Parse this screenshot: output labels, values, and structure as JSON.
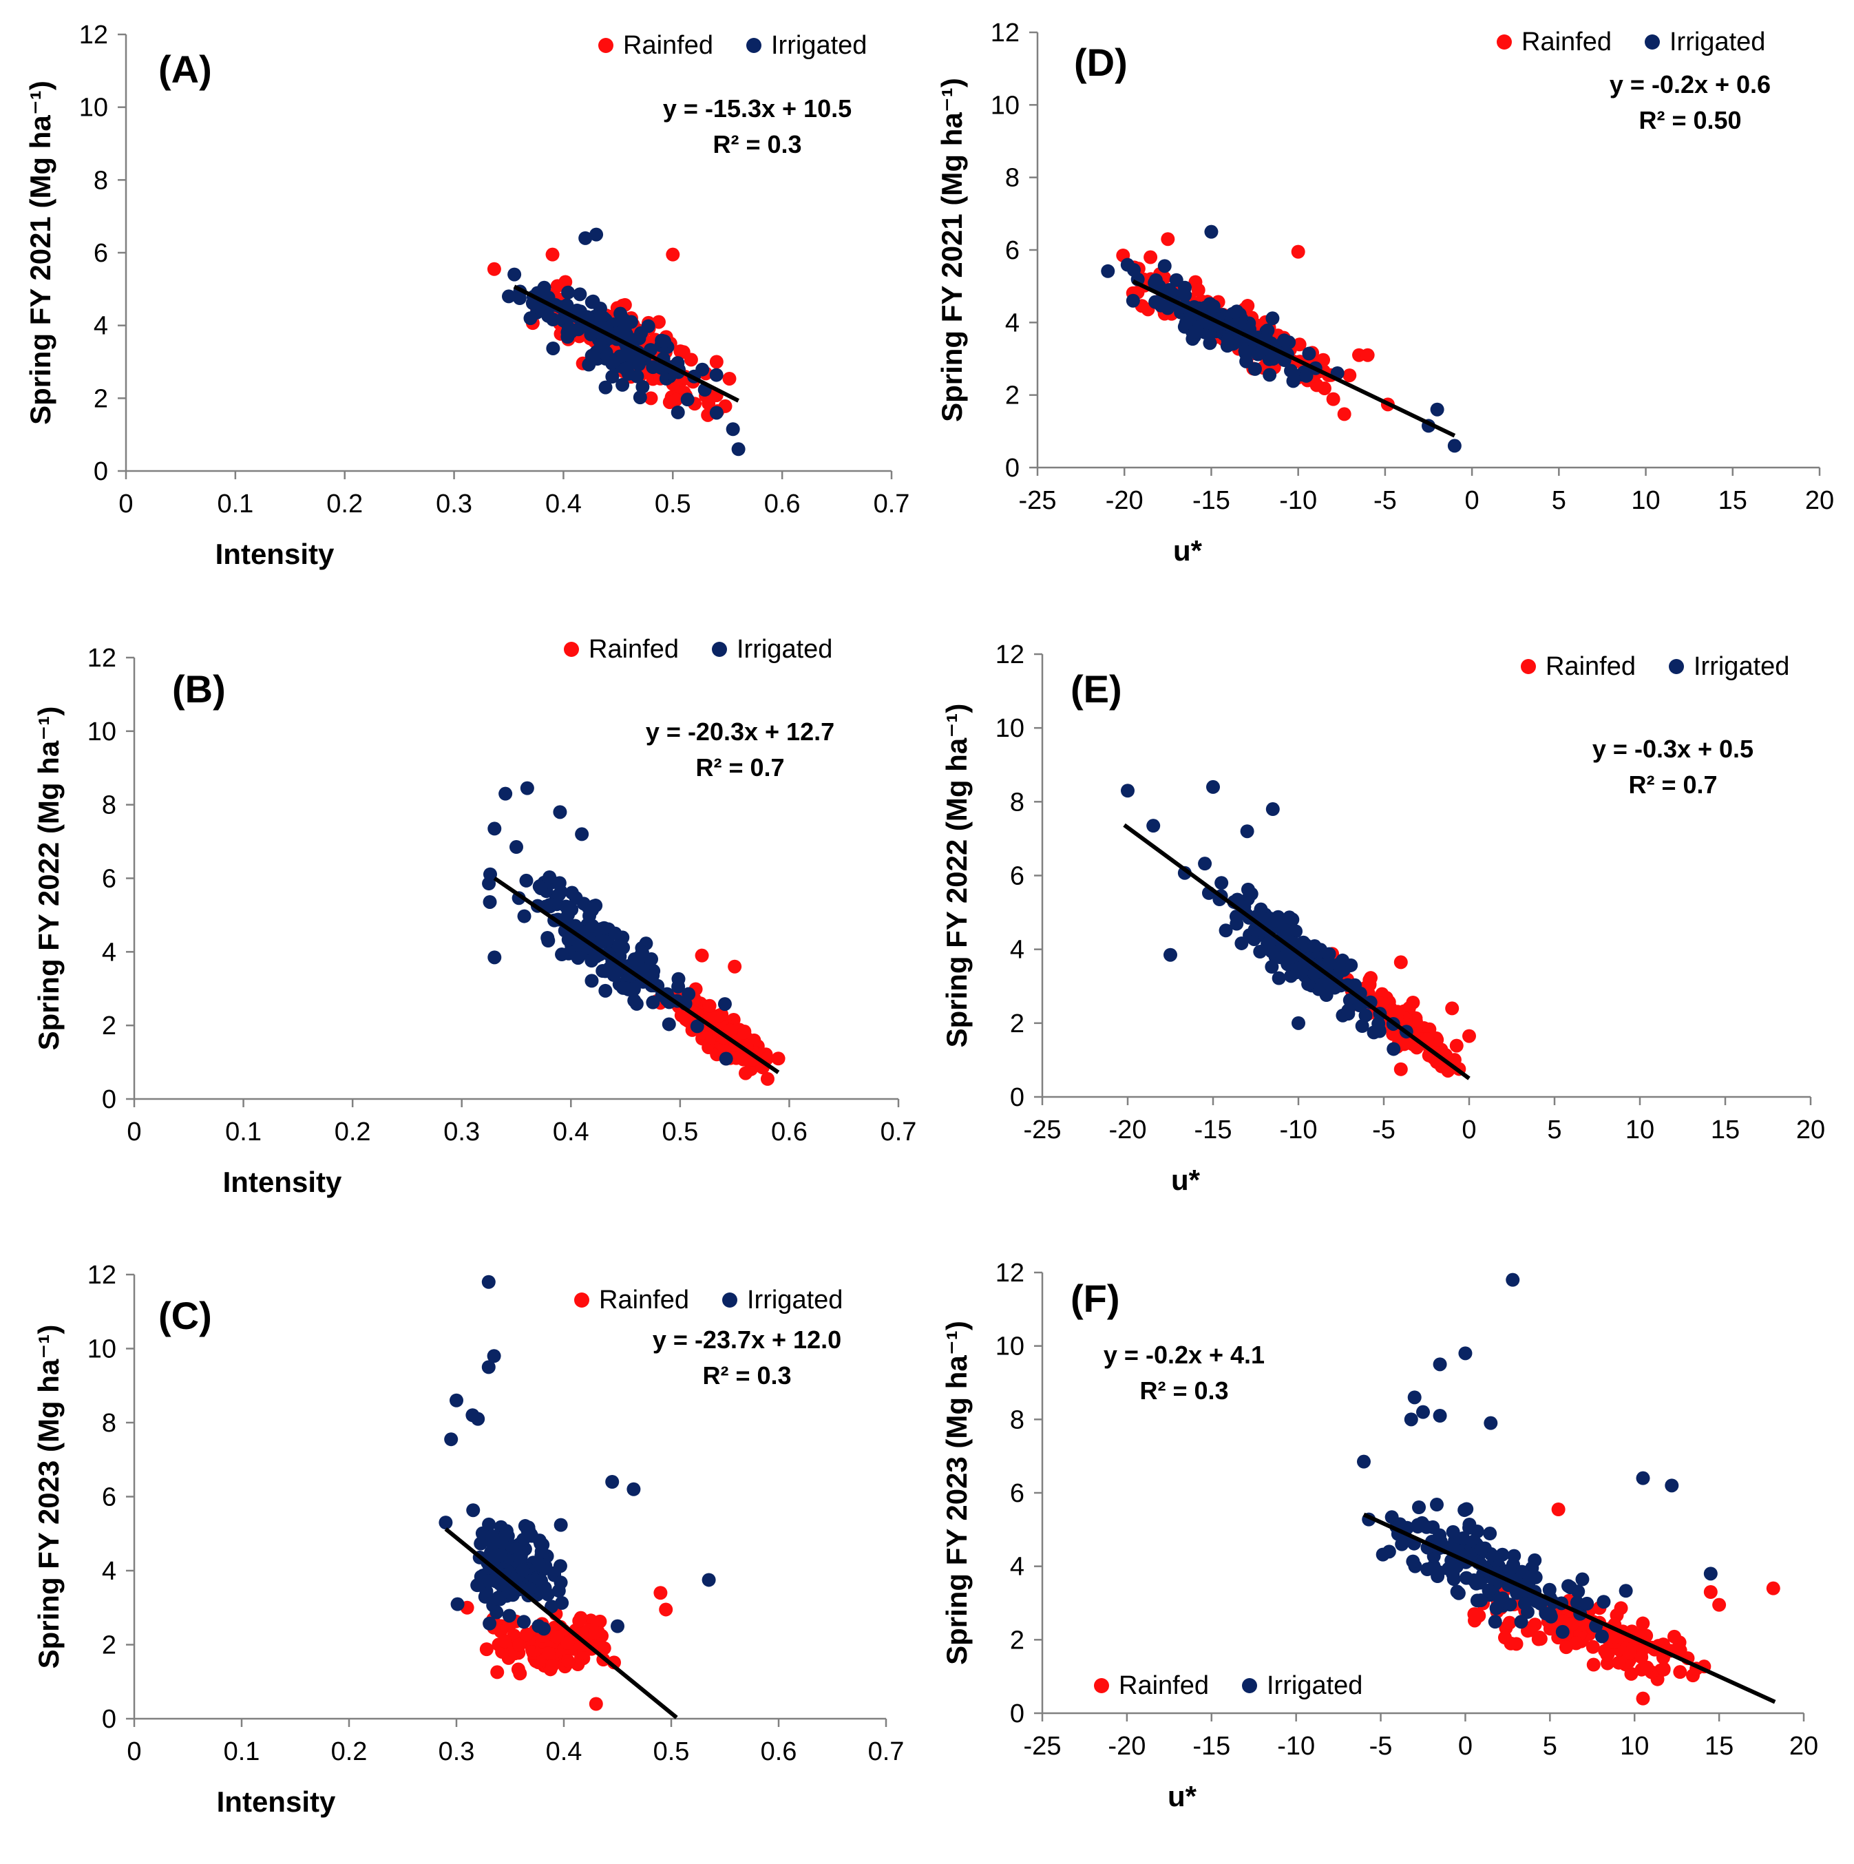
{
  "colors": {
    "rainfed": "#ff0d0d",
    "irrigated": "#0a2463",
    "trend": "#000000",
    "axis": "#808080"
  },
  "legend_labels": {
    "rainfed": "Rainfed",
    "irrigated": "Irrigated"
  },
  "chart_data": [
    {
      "id": "A",
      "type": "scatter",
      "panel_label": "(A)",
      "xlabel": "Intensity",
      "ylabel": "Spring FY 2021 (Mg ha⁻¹)",
      "xlim": [
        0,
        0.7
      ],
      "ylim": [
        0,
        12
      ],
      "xticks": [
        "0",
        "0.1",
        "0.2",
        "0.3",
        "0.4",
        "0.5",
        "0.6",
        "0.7"
      ],
      "yticks": [
        "0",
        "2",
        "4",
        "6",
        "8",
        "10",
        "12"
      ],
      "equation": "y = -15.3x + 10.5",
      "r2": "R² = 0.3",
      "trend": {
        "slope": -15.3,
        "intercept": 10.5,
        "x_range": [
          0.355,
          0.56
        ]
      },
      "series": [
        {
          "name": "Rainfed",
          "color_key": "rainfed",
          "center": [
            0.46,
            3.4
          ],
          "spread": [
            0.04,
            0.8
          ],
          "slope": -15.3,
          "n": 120,
          "seed": 11,
          "extra": [
            [
              0.5,
              5.95
            ],
            [
              0.54,
              3.0
            ],
            [
              0.39,
              5.95
            ],
            [
              0.48,
              2.0
            ],
            [
              0.52,
              1.85
            ]
          ]
        },
        {
          "name": "Irrigated",
          "color_key": "irrigated",
          "center": [
            0.44,
            3.7
          ],
          "spread": [
            0.035,
            0.85
          ],
          "slope": -15.3,
          "n": 140,
          "seed": 21,
          "extra": [
            [
              0.42,
              6.4
            ],
            [
              0.43,
              6.5
            ],
            [
              0.555,
              1.15
            ],
            [
              0.56,
              0.6
            ],
            [
              0.54,
              1.6
            ],
            [
              0.36,
              4.75
            ],
            [
              0.35,
              4.8
            ]
          ]
        }
      ]
    },
    {
      "id": "B",
      "type": "scatter",
      "panel_label": "(B)",
      "xlabel": "Intensity",
      "ylabel": "Spring FY 2022 (Mg ha⁻¹)",
      "xlim": [
        0,
        0.7
      ],
      "ylim": [
        0,
        12
      ],
      "xticks": [
        "0",
        "0.1",
        "0.2",
        "0.3",
        "0.4",
        "0.5",
        "0.6",
        "0.7"
      ],
      "yticks": [
        "0",
        "2",
        "4",
        "6",
        "8",
        "10",
        "12"
      ],
      "equation": "y = -20.3x + 12.7",
      "r2": "R² = 0.7",
      "trend": {
        "slope": -20.3,
        "intercept": 12.7,
        "x_range": [
          0.33,
          0.59
        ]
      },
      "series": [
        {
          "name": "Rainfed",
          "color_key": "rainfed",
          "center": [
            0.535,
            1.9
          ],
          "spread": [
            0.02,
            0.45
          ],
          "slope": -20.3,
          "n": 150,
          "seed": 31,
          "extra": [
            [
              0.55,
              3.6
            ],
            [
              0.52,
              3.9
            ],
            [
              0.56,
              0.7
            ],
            [
              0.59,
              1.1
            ]
          ]
        },
        {
          "name": "Irrigated",
          "color_key": "irrigated",
          "center": [
            0.43,
            4.1
          ],
          "spread": [
            0.04,
            0.8
          ],
          "slope": -20.3,
          "n": 150,
          "seed": 41,
          "extra": [
            [
              0.34,
              8.3
            ],
            [
              0.36,
              8.45
            ],
            [
              0.33,
              7.35
            ],
            [
              0.33,
              3.85
            ],
            [
              0.39,
              7.8
            ],
            [
              0.41,
              7.2
            ]
          ]
        }
      ]
    },
    {
      "id": "C",
      "type": "scatter",
      "panel_label": "(C)",
      "xlabel": "Intensity",
      "ylabel": "Spring FY 2023 (Mg ha⁻¹)",
      "xlim": [
        0,
        0.7
      ],
      "ylim": [
        0,
        12
      ],
      "xticks": [
        "0",
        "0.1",
        "0.2",
        "0.3",
        "0.4",
        "0.5",
        "0.6",
        "0.7"
      ],
      "yticks": [
        "0",
        "2",
        "4",
        "6",
        "8",
        "10",
        "12"
      ],
      "equation": "y = -23.7x + 12.0",
      "r2": "R² = 0.3",
      "trend": {
        "slope": -23.7,
        "intercept": 12.0,
        "x_range": [
          0.29,
          0.505
        ]
      },
      "series": [
        {
          "name": "Rainfed",
          "color_key": "rainfed",
          "center": [
            0.385,
            2.0
          ],
          "spread": [
            0.025,
            0.55
          ],
          "slope": 0,
          "n": 130,
          "seed": 51,
          "extra": [
            [
              0.49,
              3.4
            ],
            [
              0.495,
              2.95
            ],
            [
              0.43,
              0.4
            ],
            [
              0.31,
              3.0
            ]
          ]
        },
        {
          "name": "Irrigated",
          "color_key": "irrigated",
          "center": [
            0.355,
            4.0
          ],
          "spread": [
            0.02,
            1.1
          ],
          "slope": 0,
          "n": 150,
          "seed": 61,
          "extra": [
            [
              0.33,
              11.8
            ],
            [
              0.335,
              9.8
            ],
            [
              0.33,
              9.5
            ],
            [
              0.3,
              8.6
            ],
            [
              0.315,
              8.2
            ],
            [
              0.32,
              8.1
            ],
            [
              0.295,
              7.55
            ],
            [
              0.445,
              6.4
            ],
            [
              0.465,
              6.2
            ],
            [
              0.535,
              3.75
            ],
            [
              0.29,
              5.3
            ],
            [
              0.45,
              2.5
            ]
          ]
        }
      ]
    },
    {
      "id": "D",
      "type": "scatter",
      "panel_label": "(D)",
      "xlabel": "u*",
      "ylabel": "Spring FY 2021 (Mg ha⁻¹)",
      "xlim": [
        -25,
        20
      ],
      "ylim": [
        0,
        12
      ],
      "xticks": [
        "-25",
        "-20",
        "-15",
        "-10",
        "-5",
        "0",
        "5",
        "10",
        "15",
        "20"
      ],
      "yticks": [
        "0",
        "2",
        "4",
        "6",
        "8",
        "10",
        "12"
      ],
      "equation": "y = -0.2x + 0.6",
      "r2": "R² = 0.50",
      "trend": {
        "slope": -0.23,
        "intercept": 0.65,
        "x_range": [
          -19.5,
          -1
        ]
      },
      "series": [
        {
          "name": "Rainfed",
          "color_key": "rainfed",
          "center": [
            -13,
            3.6
          ],
          "spread": [
            3.2,
            0.55
          ],
          "slope": -0.23,
          "n": 130,
          "seed": 71,
          "extra": [
            [
              -10,
              5.95
            ],
            [
              -17.5,
              6.3
            ],
            [
              -6.5,
              3.1
            ],
            [
              -6,
              3.1
            ],
            [
              -18.5,
              5.8
            ]
          ]
        },
        {
          "name": "Irrigated",
          "color_key": "irrigated",
          "center": [
            -14,
            3.8
          ],
          "spread": [
            2.6,
            0.6
          ],
          "slope": -0.23,
          "n": 140,
          "seed": 81,
          "extra": [
            [
              -15,
              6.5
            ],
            [
              -19.5,
              4.6
            ],
            [
              -2,
              1.6
            ],
            [
              -2.5,
              1.15
            ],
            [
              -1,
              0.6
            ],
            [
              -18,
              5.0
            ]
          ]
        }
      ]
    },
    {
      "id": "E",
      "type": "scatter",
      "panel_label": "(E)",
      "xlabel": "u*",
      "ylabel": "Spring FY 2022 (Mg ha⁻¹)",
      "xlim": [
        -25,
        20
      ],
      "ylim": [
        0,
        12
      ],
      "xticks": [
        "-25",
        "-20",
        "-15",
        "-10",
        "-5",
        "0",
        "5",
        "10",
        "15",
        "20"
      ],
      "yticks": [
        "0",
        "2",
        "4",
        "6",
        "8",
        "10",
        "12"
      ],
      "equation": "y = -0.3x + 0.5",
      "r2": "R² = 0.7",
      "trend": {
        "slope": -0.34,
        "intercept": 0.5,
        "x_range": [
          -20.2,
          0
        ]
      },
      "series": [
        {
          "name": "Rainfed",
          "color_key": "rainfed",
          "center": [
            -4,
            2.0
          ],
          "spread": [
            1.6,
            0.45
          ],
          "slope": -0.34,
          "n": 140,
          "seed": 91,
          "extra": [
            [
              -4,
              3.65
            ],
            [
              -1,
              2.4
            ],
            [
              0,
              1.65
            ],
            [
              -4,
              0.75
            ]
          ]
        },
        {
          "name": "Irrigated",
          "color_key": "irrigated",
          "center": [
            -10,
            3.9
          ],
          "spread": [
            2.7,
            0.65
          ],
          "slope": -0.34,
          "n": 150,
          "seed": 101,
          "extra": [
            [
              -20,
              8.3
            ],
            [
              -15,
              8.4
            ],
            [
              -18.5,
              7.35
            ],
            [
              -17.5,
              3.85
            ],
            [
              -11.5,
              7.8
            ],
            [
              -13,
              7.2
            ],
            [
              -10,
              2.0
            ]
          ]
        }
      ]
    },
    {
      "id": "F",
      "type": "scatter",
      "panel_label": "(F)",
      "xlabel": "u*",
      "ylabel": "Spring FY 2023 (Mg ha⁻¹)",
      "xlim": [
        -25,
        20
      ],
      "ylim": [
        0,
        12
      ],
      "xticks": [
        "-25",
        "-20",
        "-15",
        "-10",
        "-5",
        "0",
        "5",
        "10",
        "15",
        "20"
      ],
      "yticks": [
        "0",
        "2",
        "4",
        "6",
        "8",
        "10",
        "12"
      ],
      "equation": "y = -0.2x + 4.1",
      "r2": "R² = 0.3",
      "trend": {
        "slope": -0.21,
        "intercept": 4.15,
        "x_range": [
          -6,
          18.3
        ]
      },
      "series": [
        {
          "name": "Rainfed",
          "color_key": "rainfed",
          "center": [
            8,
            2.1
          ],
          "spread": [
            3.2,
            0.6
          ],
          "slope": -0.1,
          "n": 140,
          "seed": 111,
          "extra": [
            [
              18.2,
              3.4
            ],
            [
              5.5,
              5.55
            ],
            [
              10.5,
              0.4
            ],
            [
              15,
              2.95
            ],
            [
              14.5,
              3.3
            ]
          ]
        },
        {
          "name": "Irrigated",
          "color_key": "irrigated",
          "center": [
            1.5,
            3.9
          ],
          "spread": [
            2.8,
            0.9
          ],
          "slope": -0.21,
          "n": 150,
          "seed": 121,
          "extra": [
            [
              2.8,
              11.8
            ],
            [
              0,
              9.8
            ],
            [
              -1.5,
              9.5
            ],
            [
              -3,
              8.6
            ],
            [
              -3.2,
              8.0
            ],
            [
              -2.5,
              8.2
            ],
            [
              -1.5,
              8.1
            ],
            [
              1.5,
              7.9
            ],
            [
              -6,
              6.85
            ],
            [
              10.5,
              6.4
            ],
            [
              12.2,
              6.2
            ],
            [
              14.5,
              3.8
            ],
            [
              -4.5,
              4.4
            ]
          ]
        }
      ]
    }
  ]
}
